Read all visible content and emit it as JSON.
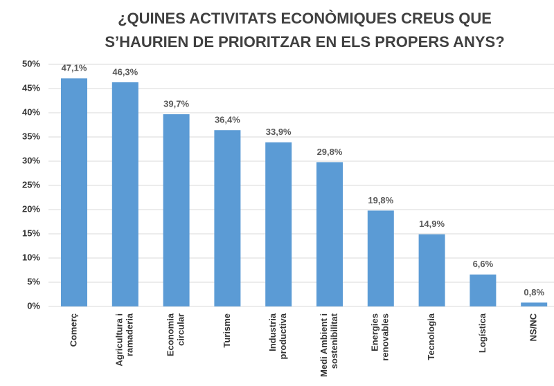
{
  "chart_data": {
    "type": "bar",
    "title": [
      "¿QUINES ACTIVITATS ECONÒMIQUES CREUS QUE",
      "S’HAURIEN DE PRIORITZAR EN ELS PROPERS ANYS?"
    ],
    "categories": [
      [
        "Comerç"
      ],
      [
        "Agricultura i",
        "ramaderia"
      ],
      [
        "Economia",
        "circular"
      ],
      [
        "Turisme"
      ],
      [
        "Industria",
        "productiva"
      ],
      [
        "Medi Ambient i",
        "sostenibilitat"
      ],
      [
        "Energies",
        "renovables"
      ],
      [
        "Tecnologia"
      ],
      [
        "Logística"
      ],
      [
        "NS/NC"
      ]
    ],
    "values": [
      47.1,
      46.3,
      39.7,
      36.4,
      33.9,
      29.8,
      19.8,
      14.9,
      6.6,
      0.8
    ],
    "value_labels": [
      "47,1%",
      "46,3%",
      "39,7%",
      "36,4%",
      "33,9%",
      "29,8%",
      "19,8%",
      "14,9%",
      "6,6%",
      "0,8%"
    ],
    "color": "#5b9bd5",
    "ylim": [
      0,
      50
    ],
    "yticks": [
      {
        "value": 0,
        "label": "0%"
      },
      {
        "value": 5,
        "label": "5%"
      },
      {
        "value": 10,
        "label": "10%"
      },
      {
        "value": 15,
        "label": "15%"
      },
      {
        "value": 20,
        "label": "20%"
      },
      {
        "value": 25,
        "label": "25%"
      },
      {
        "value": 30,
        "label": "30%"
      },
      {
        "value": 35,
        "label": "35%"
      },
      {
        "value": 40,
        "label": "40%"
      },
      {
        "value": 45,
        "label": "45%"
      },
      {
        "value": 50,
        "label": "50%"
      }
    ],
    "grid": true
  }
}
